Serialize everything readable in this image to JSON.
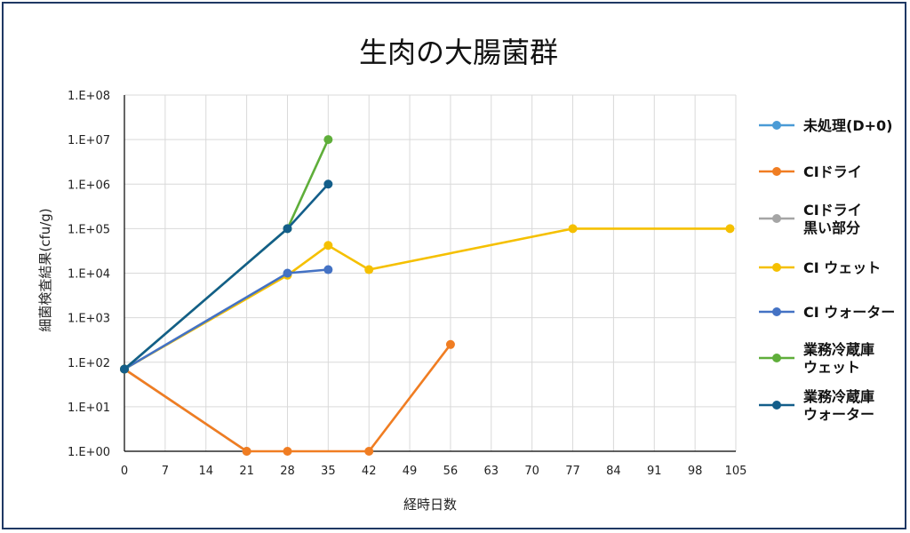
{
  "chart_data": {
    "type": "line",
    "title": "生肉の大腸菌群",
    "xlabel": "経時日数",
    "ylabel": "細菌検査結果(cfu/g)",
    "y_scale": "log",
    "xlim": [
      0,
      105
    ],
    "ylim": [
      1,
      100000000
    ],
    "x_ticks": [
      "0",
      "7",
      "14",
      "21",
      "28",
      "35",
      "42",
      "49",
      "56",
      "63",
      "70",
      "77",
      "84",
      "91",
      "98",
      "105"
    ],
    "y_ticks": [
      "1.E+00",
      "1.E+01",
      "1.E+02",
      "1.E+03",
      "1.E+04",
      "1.E+05",
      "1.E+06",
      "1.E+07",
      "1.E+08"
    ],
    "grid": true,
    "legend_position": "right",
    "series": [
      {
        "name": "未処理(D+0)",
        "color": "#4a9bd6",
        "points": [
          [
            0,
            70
          ]
        ]
      },
      {
        "name": "CIドライ",
        "color": "#f07d22",
        "points": [
          [
            0,
            70
          ],
          [
            21,
            1
          ],
          [
            28,
            1
          ],
          [
            42,
            1
          ],
          [
            56,
            250
          ]
        ]
      },
      {
        "name": "CIドライ\n黒い部分",
        "color": "#a5a5a5",
        "points": [
          [
            0,
            70
          ],
          [
            21,
            1
          ]
        ]
      },
      {
        "name": "CI ウェット",
        "color": "#f5c000",
        "points": [
          [
            0,
            70
          ],
          [
            28,
            9000
          ],
          [
            35,
            42000
          ],
          [
            42,
            12000
          ],
          [
            77,
            100000
          ],
          [
            104,
            100000
          ]
        ]
      },
      {
        "name": "CI ウォーター",
        "color": "#4472c4",
        "points": [
          [
            0,
            70
          ],
          [
            28,
            10000
          ],
          [
            35,
            12000
          ]
        ]
      },
      {
        "name": "業務冷蔵庫\nウェット",
        "color": "#5fae3a",
        "points": [
          [
            0,
            70
          ],
          [
            28,
            100000
          ],
          [
            35,
            10000000
          ]
        ]
      },
      {
        "name": "業務冷蔵庫\nウォーター",
        "color": "#135e8a",
        "points": [
          [
            0,
            70
          ],
          [
            28,
            100000
          ],
          [
            35,
            1000000
          ]
        ]
      }
    ]
  }
}
